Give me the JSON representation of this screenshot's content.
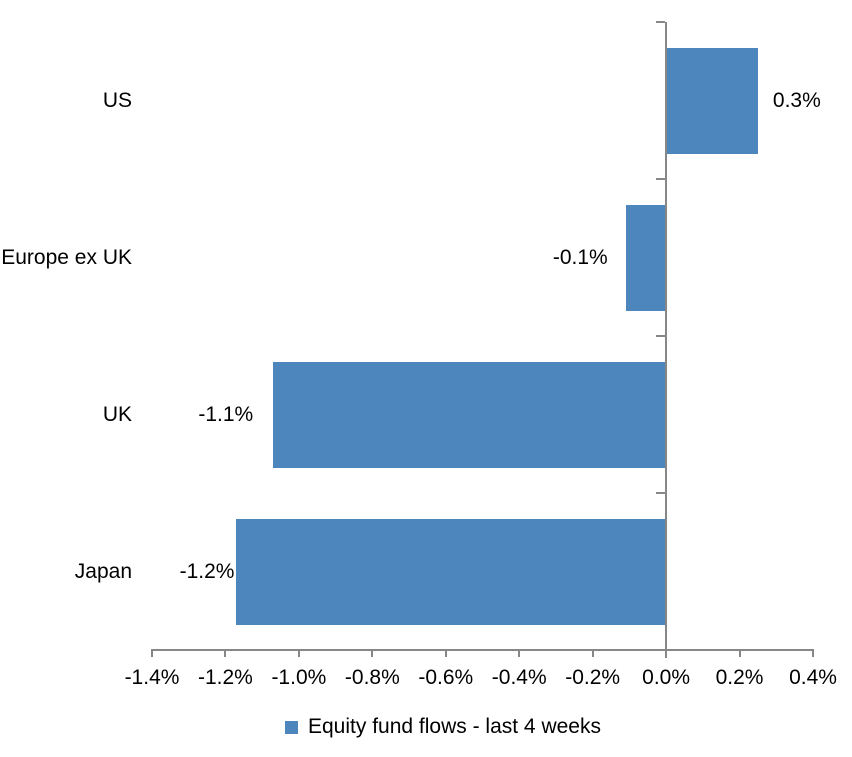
{
  "chart": {
    "colors": {
      "bar": "#4d86bd",
      "axis": "#878787",
      "text": "#000000",
      "background": "#ffffff"
    }
  },
  "chart_data": {
    "type": "bar",
    "orientation": "horizontal",
    "title": "",
    "xlabel": "",
    "ylabel": "",
    "grid": false,
    "legend_position": "bottom",
    "series_name": "Equity fund flows - last 4 weeks",
    "categories": [
      "US",
      "Europe ex UK",
      "UK",
      "Japan"
    ],
    "values": [
      0.25,
      -0.11,
      -1.07,
      -1.17
    ],
    "data_labels": [
      "0.3%",
      "-0.1%",
      "-1.1%",
      "-1.2%"
    ],
    "xlim": [
      -1.4,
      0.4
    ],
    "x_ticks": [
      -1.4,
      -1.2,
      -1.0,
      -0.8,
      -0.6,
      -0.4,
      -0.2,
      0.0,
      0.2,
      0.4
    ],
    "x_tick_labels": [
      "-1.4%",
      "-1.2%",
      "-1.0%",
      "-0.8%",
      "-0.6%",
      "-0.4%",
      "-0.2%",
      "0.0%",
      "0.2%",
      "0.4%"
    ]
  }
}
